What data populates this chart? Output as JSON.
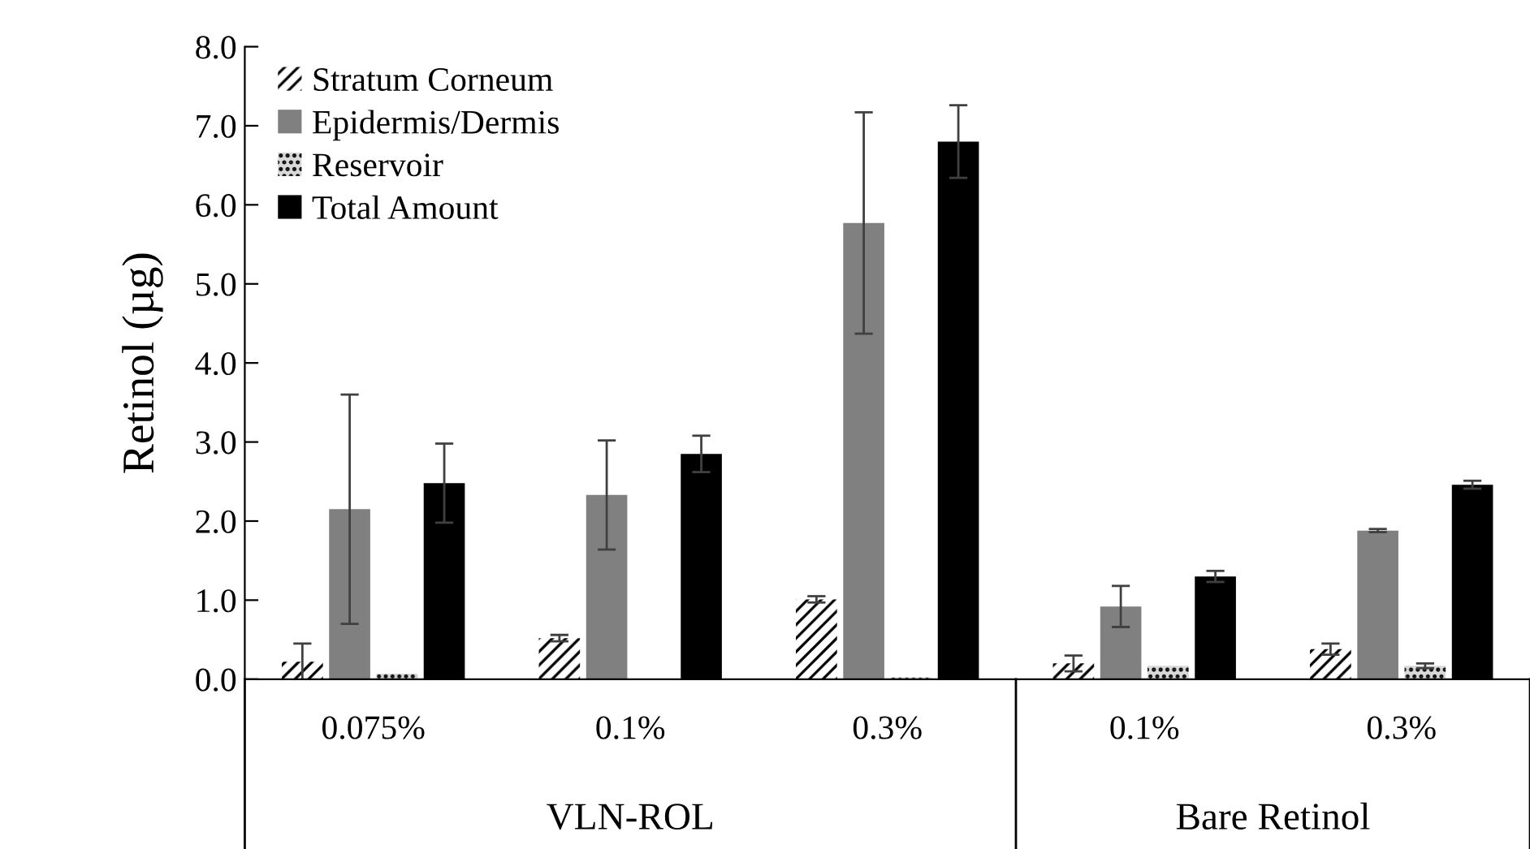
{
  "chart_data": {
    "type": "bar",
    "ylabel": "Retinol (µg)",
    "categories": [
      "0.075%",
      "0.1%",
      "0.3%",
      "0.1%",
      "0.3%"
    ],
    "series": [
      {
        "name": "Stratum Corneum",
        "color": "#ffffff",
        "values": [
          0.22,
          0.52,
          1.01,
          0.2,
          0.38
        ],
        "errors": [
          0.23,
          0.04,
          0.04,
          0.1,
          0.07
        ]
      },
      {
        "name": "Epidermis/Dermis",
        "color": "#808080",
        "values": [
          2.15,
          2.33,
          5.77,
          0.92,
          1.88
        ],
        "errors": [
          1.45,
          0.69,
          1.4,
          0.26,
          0.02
        ]
      },
      {
        "name": "Reservoir",
        "color": "#d9d9d9",
        "values": [
          0.07,
          null,
          0.02,
          0.17,
          0.17
        ],
        "errors": [
          null,
          null,
          null,
          null,
          0.03
        ]
      },
      {
        "name": "Total Amount",
        "color": "#000000",
        "values": [
          2.48,
          2.85,
          6.8,
          1.3,
          2.46
        ],
        "errors": [
          0.5,
          0.23,
          0.46,
          0.07,
          0.05
        ]
      }
    ],
    "ylim": [
      0,
      8
    ],
    "yticks": [
      {
        "value": 0,
        "label": "0.0"
      },
      {
        "value": 1,
        "label": "1.0"
      },
      {
        "value": 2,
        "label": "2.0"
      },
      {
        "value": 3,
        "label": "3.0"
      },
      {
        "value": 4,
        "label": "4.0"
      },
      {
        "value": 5,
        "label": "5.0"
      },
      {
        "value": 6,
        "label": "6.0"
      },
      {
        "value": 7,
        "label": "7.0"
      },
      {
        "value": 8,
        "label": "8.0"
      }
    ],
    "grid": false,
    "legend": "top left",
    "annotations": [
      "VLN-ROL",
      "Bare Retinol"
    ]
  }
}
